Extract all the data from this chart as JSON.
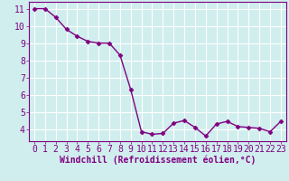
{
  "x": [
    0,
    1,
    2,
    3,
    4,
    5,
    6,
    7,
    8,
    9,
    10,
    11,
    12,
    13,
    14,
    15,
    16,
    17,
    18,
    19,
    20,
    21,
    22,
    23
  ],
  "y": [
    11.0,
    11.0,
    10.5,
    9.8,
    9.4,
    9.1,
    9.0,
    9.0,
    8.3,
    6.3,
    3.85,
    3.7,
    3.75,
    4.35,
    4.5,
    4.1,
    3.6,
    4.3,
    4.45,
    4.15,
    4.1,
    4.05,
    3.85,
    4.45
  ],
  "line_color": "#800080",
  "marker": "D",
  "marker_size": 2.5,
  "bg_color": "#d0eeee",
  "grid_color": "#ffffff",
  "xlabel": "Windchill (Refroidissement éolien,°C)",
  "xlim": [
    -0.5,
    23.5
  ],
  "ylim": [
    3.3,
    11.4
  ],
  "yticks": [
    4,
    5,
    6,
    7,
    8,
    9,
    10,
    11
  ],
  "xticks": [
    0,
    1,
    2,
    3,
    4,
    5,
    6,
    7,
    8,
    9,
    10,
    11,
    12,
    13,
    14,
    15,
    16,
    17,
    18,
    19,
    20,
    21,
    22,
    23
  ],
  "xlabel_fontsize": 7,
  "tick_fontsize": 7,
  "line_width": 1.0
}
